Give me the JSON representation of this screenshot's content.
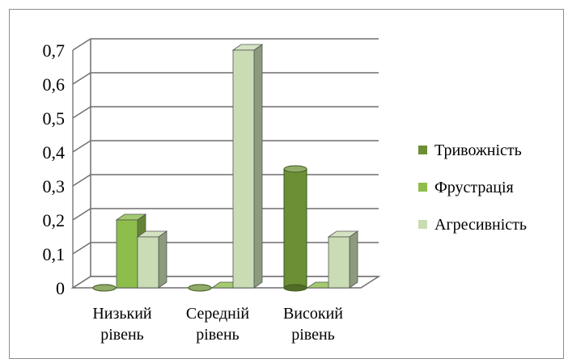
{
  "chart_data": {
    "type": "bar",
    "style": "3d-clustered-column",
    "categories": [
      [
        "Низький",
        "рівень"
      ],
      [
        "Середній",
        "рівень"
      ],
      [
        "Високий",
        "рівень"
      ]
    ],
    "series": [
      {
        "name": "Тривожність",
        "values": [
          0,
          0,
          0.35
        ],
        "shape": "cylinder",
        "color": "#6c8f35"
      },
      {
        "name": "Фрустрація",
        "values": [
          0.2,
          0,
          0
        ],
        "shape": "box",
        "color": "#8dbd4b"
      },
      {
        "name": "Агресивність",
        "values": [
          0.15,
          0.7,
          0.15
        ],
        "shape": "box",
        "color": "#c9dcb3"
      }
    ],
    "y_ticks": [
      "0",
      "0,1",
      "0,2",
      "0,3",
      "0,4",
      "0,5",
      "0,6",
      "0,7"
    ],
    "ylim": [
      0,
      0.7
    ],
    "grid": true,
    "legend": "right"
  }
}
